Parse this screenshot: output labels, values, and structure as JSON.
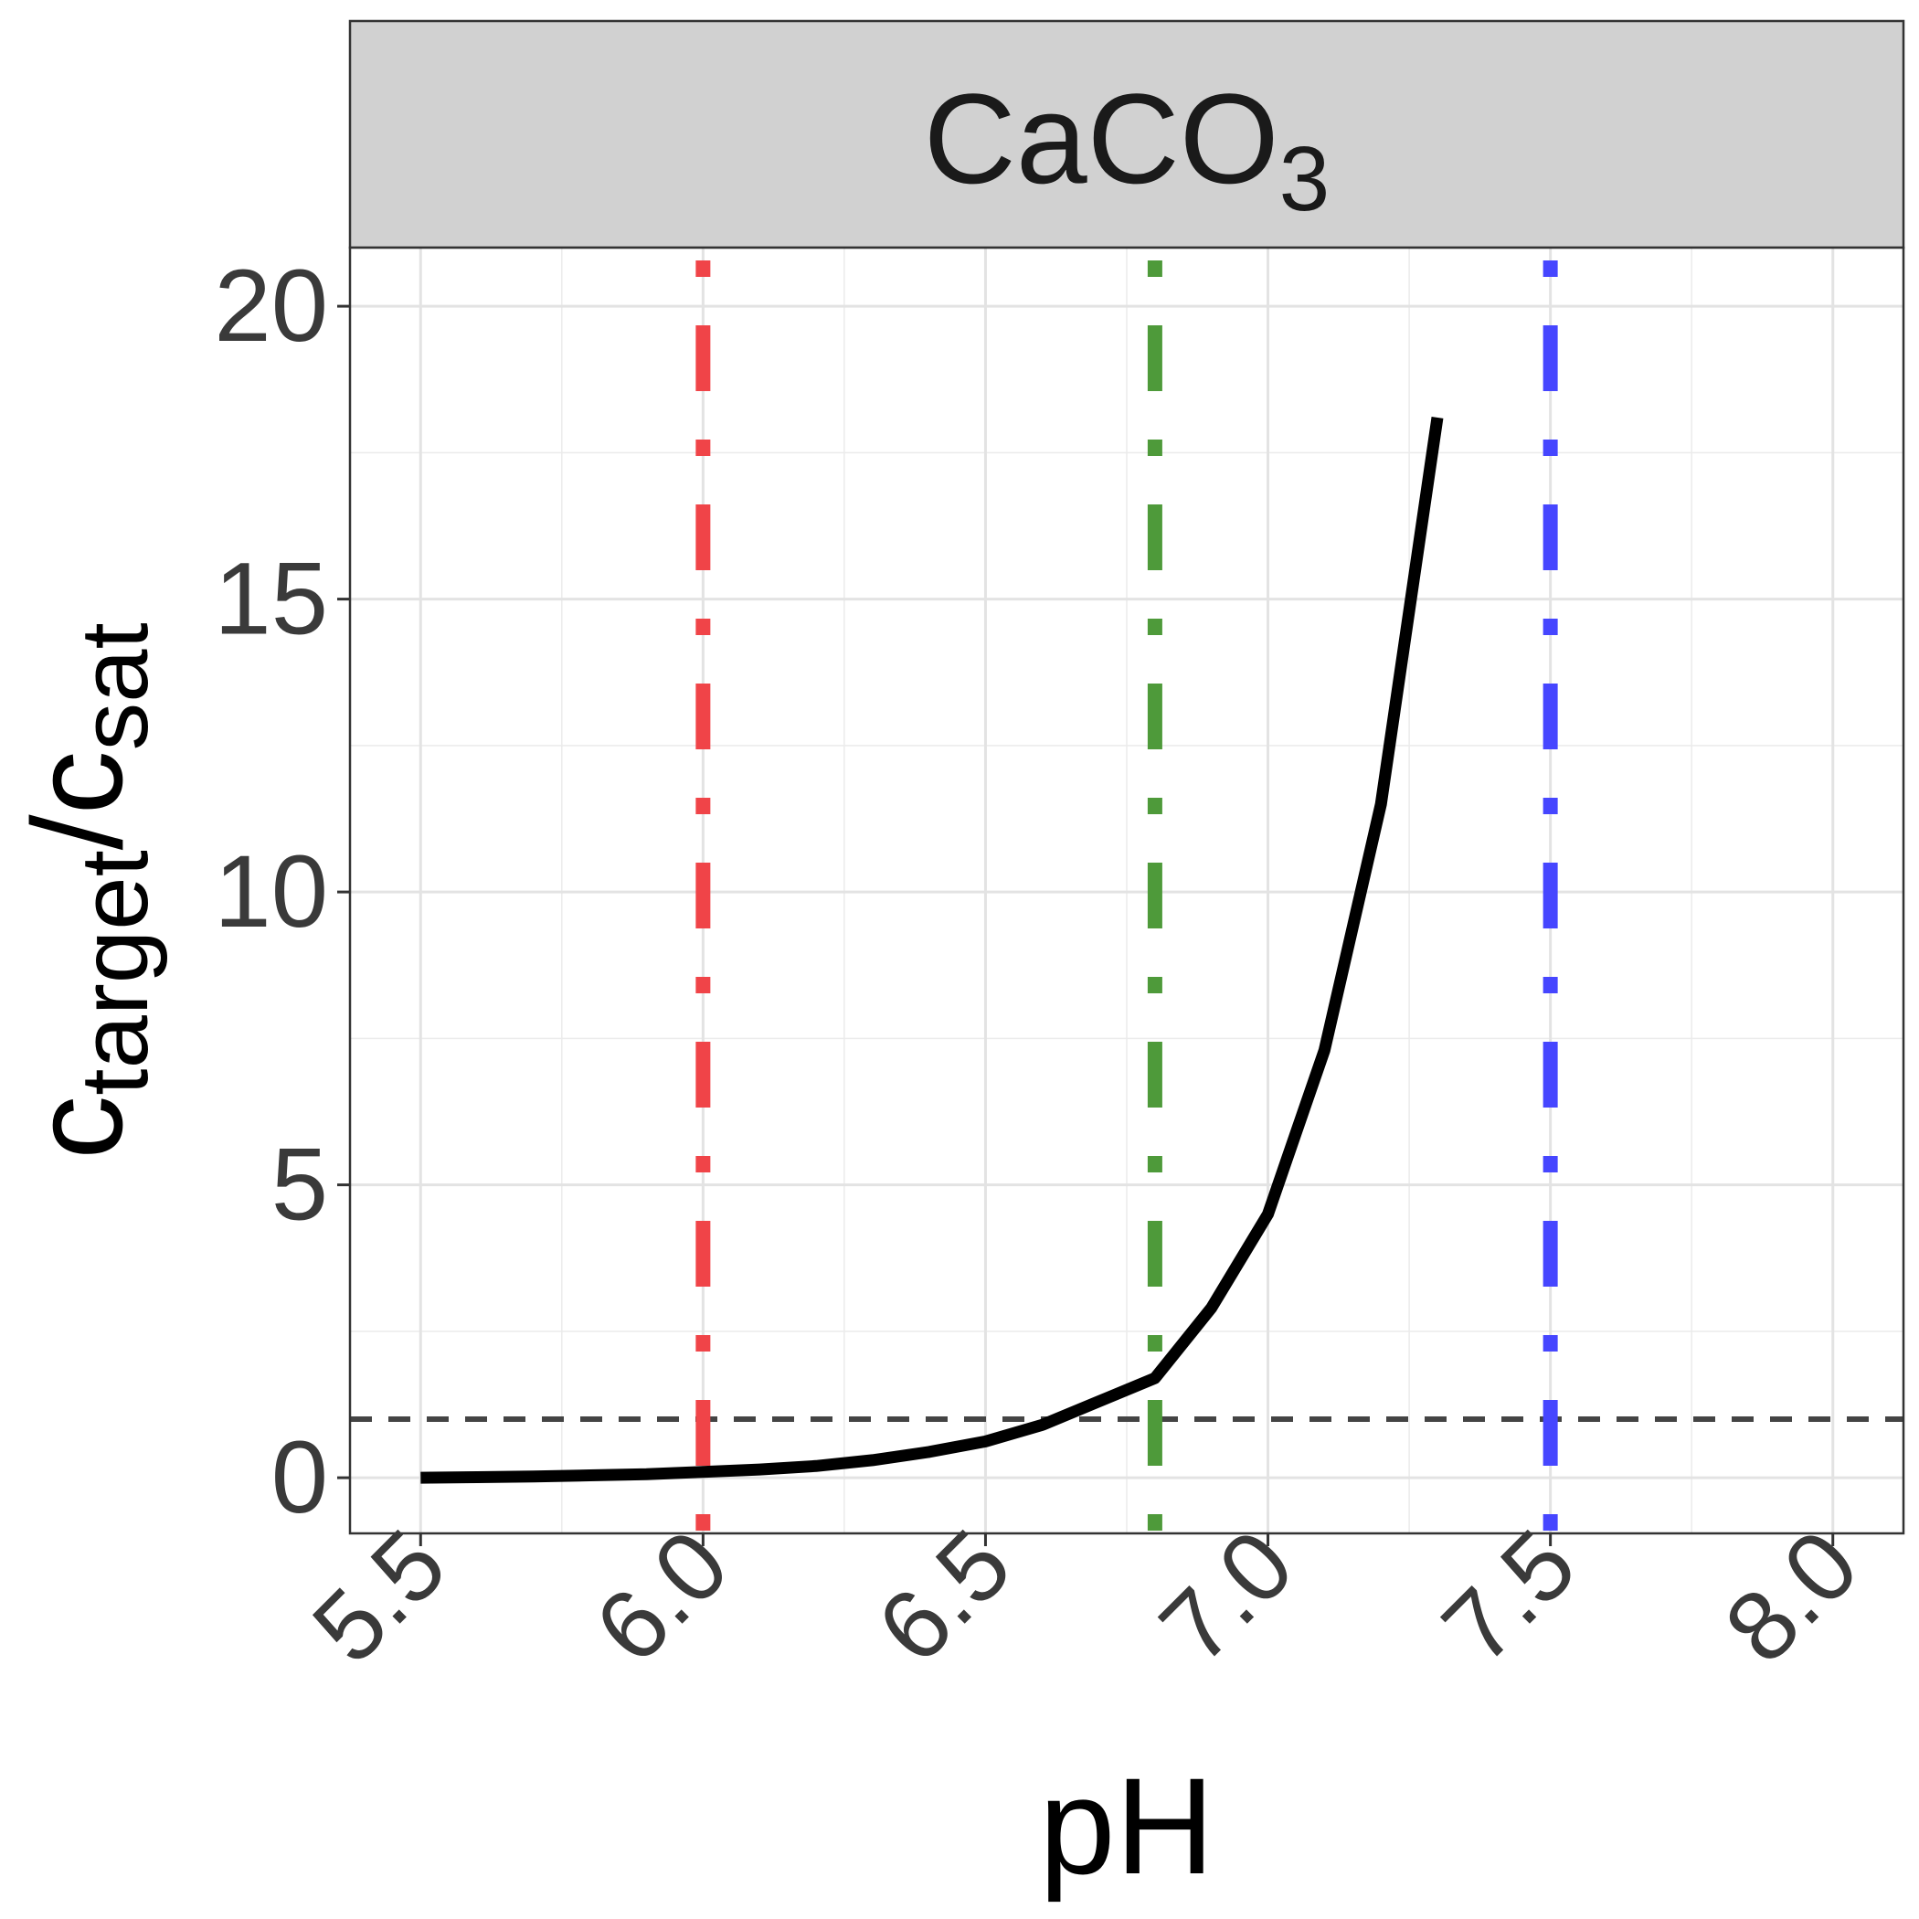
{
  "chart_data": {
    "type": "line",
    "panel_title": "CaCO",
    "panel_title_subscript": "3",
    "xlabel": "pH",
    "ylabel_main": "c",
    "ylabel_sub1": "target",
    "ylabel_mid": "/c",
    "ylabel_sub2": "sat",
    "xlim": [
      5.375,
      8.125
    ],
    "ylim": [
      -0.95,
      21.0
    ],
    "x_ticks": [
      5.5,
      6.0,
      6.5,
      7.0,
      7.5,
      8.0
    ],
    "x_tick_labels": [
      "5.5",
      "6.0",
      "6.5",
      "7.0",
      "7.5",
      "8.0"
    ],
    "y_ticks": [
      0,
      5,
      10,
      15,
      20
    ],
    "y_tick_labels": [
      "0",
      "5",
      "10",
      "15",
      "20"
    ],
    "grid": true,
    "series": [
      {
        "color": "#000000",
        "x": [
          5.5,
          5.6,
          5.7,
          5.8,
          5.9,
          6.0,
          6.1,
          6.2,
          6.3,
          6.4,
          6.5,
          6.6,
          6.7,
          6.8,
          6.9,
          7.0,
          7.1,
          7.2,
          7.3
        ],
        "y": [
          0.0,
          0.01,
          0.02,
          0.04,
          0.06,
          0.1,
          0.14,
          0.2,
          0.3,
          0.44,
          0.62,
          0.9,
          1.3,
          1.7,
          2.9,
          4.5,
          7.3,
          11.5,
          18.1
        ]
      }
    ],
    "reference_lines": [
      {
        "orientation": "horizontal",
        "value": 1.0,
        "color": "#444444",
        "style": "dashed"
      },
      {
        "orientation": "vertical",
        "value": 6.0,
        "color": "#f04448",
        "style": "dotdash"
      },
      {
        "orientation": "vertical",
        "value": 6.8,
        "color": "#4e9a3a",
        "style": "dotdash"
      },
      {
        "orientation": "vertical",
        "value": 7.5,
        "color": "#4646ff",
        "style": "dotdash"
      }
    ]
  }
}
